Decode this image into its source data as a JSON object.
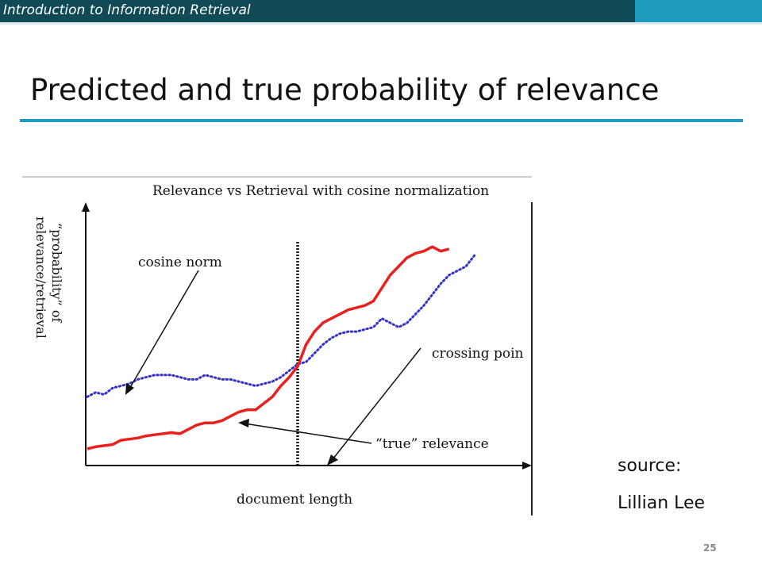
{
  "header": {
    "course_title": "Introduction to Information Retrieval",
    "bar_color": "#0f4a56",
    "accent_color": "#1f9bbf"
  },
  "slide": {
    "title": "Predicted and true probability of relevance",
    "source_label": "source:",
    "source_name": "Lillian Lee",
    "page_number": "25"
  },
  "chart_data": {
    "type": "line",
    "title": "Relevance vs Retrieval with cosine normalization",
    "xlabel": "document length",
    "ylabel_line1": "“probability” of",
    "ylabel_line2": "relevance/retrieval",
    "x_ticks": "none",
    "y_ticks": "none",
    "grid": false,
    "series": [
      {
        "name": "cosine norm",
        "style": "dotted",
        "color": "#3333cc",
        "points": [
          [
            0.0,
            0.28
          ],
          [
            0.02,
            0.3
          ],
          [
            0.04,
            0.29
          ],
          [
            0.06,
            0.32
          ],
          [
            0.08,
            0.33
          ],
          [
            0.1,
            0.34
          ],
          [
            0.12,
            0.36
          ],
          [
            0.14,
            0.37
          ],
          [
            0.16,
            0.38
          ],
          [
            0.18,
            0.38
          ],
          [
            0.2,
            0.38
          ],
          [
            0.22,
            0.37
          ],
          [
            0.24,
            0.36
          ],
          [
            0.26,
            0.36
          ],
          [
            0.28,
            0.38
          ],
          [
            0.3,
            0.37
          ],
          [
            0.32,
            0.36
          ],
          [
            0.34,
            0.36
          ],
          [
            0.36,
            0.35
          ],
          [
            0.38,
            0.34
          ],
          [
            0.4,
            0.33
          ],
          [
            0.42,
            0.34
          ],
          [
            0.44,
            0.35
          ],
          [
            0.46,
            0.37
          ],
          [
            0.48,
            0.4
          ],
          [
            0.5,
            0.43
          ],
          [
            0.52,
            0.44
          ],
          [
            0.54,
            0.48
          ],
          [
            0.56,
            0.52
          ],
          [
            0.58,
            0.55
          ],
          [
            0.6,
            0.57
          ],
          [
            0.62,
            0.58
          ],
          [
            0.64,
            0.58
          ],
          [
            0.66,
            0.59
          ],
          [
            0.68,
            0.6
          ],
          [
            0.7,
            0.64
          ],
          [
            0.72,
            0.62
          ],
          [
            0.74,
            0.6
          ],
          [
            0.76,
            0.62
          ],
          [
            0.78,
            0.66
          ],
          [
            0.8,
            0.7
          ],
          [
            0.82,
            0.75
          ],
          [
            0.84,
            0.8
          ],
          [
            0.86,
            0.84
          ],
          [
            0.88,
            0.86
          ],
          [
            0.9,
            0.88
          ],
          [
            0.92,
            0.93
          ]
        ]
      },
      {
        "name": "“true” relevance",
        "style": "solid",
        "color": "#e8211f",
        "points": [
          [
            0.0,
            0.04
          ],
          [
            0.02,
            0.05
          ],
          [
            0.04,
            0.055
          ],
          [
            0.06,
            0.06
          ],
          [
            0.08,
            0.08
          ],
          [
            0.1,
            0.085
          ],
          [
            0.12,
            0.09
          ],
          [
            0.14,
            0.1
          ],
          [
            0.16,
            0.105
          ],
          [
            0.18,
            0.11
          ],
          [
            0.2,
            0.115
          ],
          [
            0.22,
            0.11
          ],
          [
            0.24,
            0.13
          ],
          [
            0.26,
            0.15
          ],
          [
            0.28,
            0.16
          ],
          [
            0.3,
            0.16
          ],
          [
            0.32,
            0.17
          ],
          [
            0.34,
            0.19
          ],
          [
            0.36,
            0.21
          ],
          [
            0.38,
            0.22
          ],
          [
            0.4,
            0.22
          ],
          [
            0.42,
            0.25
          ],
          [
            0.44,
            0.28
          ],
          [
            0.46,
            0.33
          ],
          [
            0.48,
            0.37
          ],
          [
            0.5,
            0.42
          ],
          [
            0.52,
            0.52
          ],
          [
            0.54,
            0.58
          ],
          [
            0.56,
            0.62
          ],
          [
            0.58,
            0.64
          ],
          [
            0.6,
            0.66
          ],
          [
            0.62,
            0.68
          ],
          [
            0.64,
            0.69
          ],
          [
            0.66,
            0.7
          ],
          [
            0.68,
            0.72
          ],
          [
            0.7,
            0.78
          ],
          [
            0.72,
            0.84
          ],
          [
            0.74,
            0.88
          ],
          [
            0.76,
            0.92
          ],
          [
            0.78,
            0.94
          ],
          [
            0.8,
            0.95
          ],
          [
            0.82,
            0.97
          ],
          [
            0.84,
            0.95
          ],
          [
            0.86,
            0.96
          ]
        ]
      }
    ],
    "crossing_x": 0.5,
    "annotations": {
      "cosine_norm": "cosine norm",
      "crossing_point": "crossing poin",
      "true_relevance": "“true” relevance"
    }
  }
}
